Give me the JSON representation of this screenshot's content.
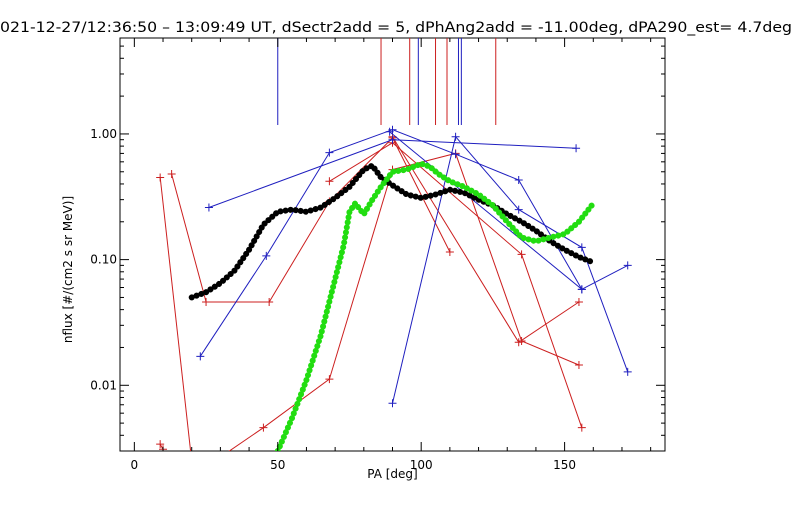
{
  "chart_data": {
    "type": "line",
    "title": "021-12-27/12:36:50 – 13:09:49 UT, dSectr2add = 5, dPhAng2add = -11.00deg, dPA290_est=    4.7deg",
    "xlabel": "PA [deg]",
    "ylabel": "nflux [#/(cm2 s sr MeV)]",
    "xlim": [
      -5,
      185
    ],
    "ylim": [
      0.003,
      5.8
    ],
    "yscale": "log",
    "x_tick_labels": [
      "0",
      "50",
      "100",
      "150"
    ],
    "x_ticks": [
      0,
      50,
      100,
      150
    ],
    "y_tick_labels": [
      "0.01",
      "0.10",
      "1.00"
    ],
    "y_ticks": [
      0.01,
      0.1,
      1.0
    ],
    "grid": false,
    "legend": "none",
    "top_markers": [
      {
        "x": 50,
        "color": "#1f1fbf"
      },
      {
        "x": 86,
        "color": "#cc1f1f"
      },
      {
        "x": 96,
        "color": "#cc1f1f"
      },
      {
        "x": 99,
        "color": "#1f1fbf"
      },
      {
        "x": 105,
        "color": "#cc1f1f"
      },
      {
        "x": 109,
        "color": "#cc1f1f"
      },
      {
        "x": 113,
        "color": "#1f1fbf"
      },
      {
        "x": 114,
        "color": "#1f1fbf"
      },
      {
        "x": 126,
        "color": "#cc1f1f"
      }
    ],
    "series": [
      {
        "color": "#cc1f1f",
        "style": "line-plus",
        "x": [
          9,
          20
        ],
        "y": [
          0.45,
          0.0025
        ]
      },
      {
        "color": "#cc1f1f",
        "style": "line-plus",
        "x": [
          13,
          25,
          47,
          68,
          90,
          110
        ],
        "y": [
          0.48,
          0.046,
          0.046,
          0.29,
          0.93,
          0.115
        ]
      },
      {
        "color": "#cc1f1f",
        "style": "line-plus",
        "x": [
          9,
          10
        ],
        "y": [
          0.0034,
          0.0031
        ]
      },
      {
        "color": "#cc1f1f",
        "style": "line-plus",
        "x": [
          28,
          45,
          68,
          90,
          112,
          135,
          155
        ],
        "y": [
          0.0025,
          0.0046,
          0.0112,
          0.52,
          0.7,
          0.0225,
          0.0145
        ]
      },
      {
        "color": "#cc1f1f",
        "style": "line-plus",
        "x": [
          68,
          90,
          135,
          156
        ],
        "y": [
          0.42,
          0.85,
          0.11,
          0.0046
        ]
      },
      {
        "color": "#cc1f1f",
        "style": "line-plus",
        "x": [
          90,
          134,
          155
        ],
        "y": [
          0.95,
          0.022,
          0.046
        ]
      },
      {
        "color": "#1f1fbf",
        "style": "line-plus",
        "x": [
          23,
          46,
          68,
          90,
          112,
          134,
          156
        ],
        "y": [
          0.017,
          0.107,
          0.71,
          1.08,
          0.69,
          0.43,
          0.058
        ]
      },
      {
        "color": "#1f1fbf",
        "style": "line-plus",
        "x": [
          26,
          90,
          154
        ],
        "y": [
          0.26,
          0.9,
          0.77
        ]
      },
      {
        "color": "#1f1fbf",
        "style": "line-plus",
        "x": [
          90,
          112,
          134,
          156,
          172
        ],
        "y": [
          0.0072,
          0.95,
          0.25,
          0.125,
          0.0128
        ]
      },
      {
        "color": "#1f1fbf",
        "style": "line-plus",
        "x": [
          89,
          156,
          172
        ],
        "y": [
          1.04,
          0.058,
          0.09
        ]
      },
      {
        "color": "#000000",
        "style": "thick",
        "x": [
          20,
          25,
          30,
          35,
          40,
          45,
          50,
          55,
          60,
          65,
          70,
          75,
          80,
          83,
          86,
          90,
          95,
          100,
          105,
          110,
          115,
          120,
          125,
          130,
          135,
          140,
          145,
          150,
          155,
          160
        ],
        "y": [
          0.05,
          0.055,
          0.065,
          0.082,
          0.12,
          0.19,
          0.24,
          0.25,
          0.24,
          0.26,
          0.31,
          0.38,
          0.52,
          0.56,
          0.45,
          0.39,
          0.33,
          0.31,
          0.33,
          0.36,
          0.34,
          0.3,
          0.27,
          0.23,
          0.2,
          0.17,
          0.14,
          0.12,
          0.105,
          0.095
        ]
      },
      {
        "color": "#22dd11",
        "style": "thick",
        "x": [
          50,
          55,
          60,
          65,
          70,
          73,
          75,
          77,
          80,
          83,
          86,
          90,
          95,
          100,
          103,
          106,
          110,
          115,
          120,
          125,
          130,
          135,
          140,
          145,
          150,
          155,
          160
        ],
        "y": [
          0.003,
          0.0055,
          0.011,
          0.025,
          0.07,
          0.13,
          0.24,
          0.28,
          0.23,
          0.3,
          0.38,
          0.5,
          0.52,
          0.58,
          0.55,
          0.48,
          0.42,
          0.38,
          0.33,
          0.27,
          0.2,
          0.15,
          0.14,
          0.15,
          0.16,
          0.2,
          0.28
        ]
      }
    ]
  }
}
